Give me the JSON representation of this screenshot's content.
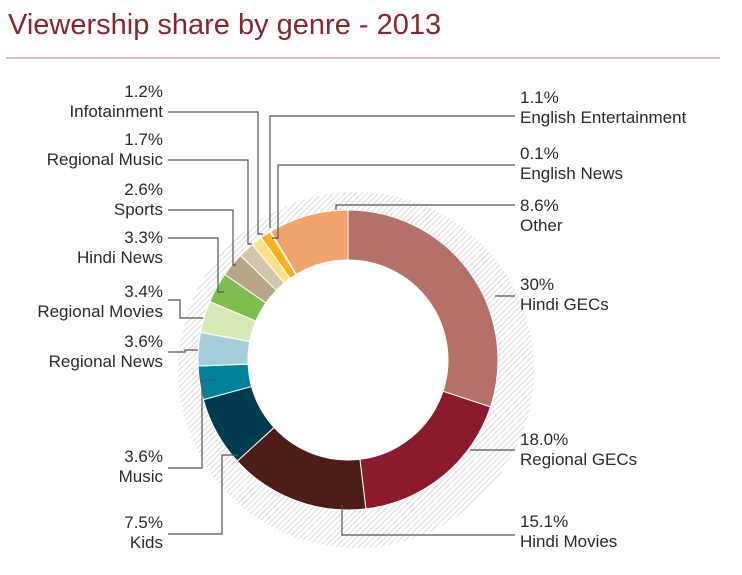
{
  "chart_data": {
    "type": "donut",
    "title": "Viewership share by genre - 2013",
    "unit": "%",
    "slices": [
      {
        "name": "Hindi GECs",
        "value": 30,
        "label": "30%",
        "color": "#b5706a"
      },
      {
        "name": "Regional GECs",
        "value": 18.0,
        "label": "18.0%",
        "color": "#8b1a2b"
      },
      {
        "name": "Hindi Movies",
        "value": 15.1,
        "label": "15.1%",
        "color": "#4d1e17"
      },
      {
        "name": "Kids",
        "value": 7.5,
        "label": "7.5%",
        "color": "#003c4c"
      },
      {
        "name": "Music",
        "value": 3.6,
        "label": "3.6%",
        "color": "#008399"
      },
      {
        "name": "Regional News",
        "value": 3.6,
        "label": "3.6%",
        "color": "#a5cedc"
      },
      {
        "name": "Regional Movies",
        "value": 3.4,
        "label": "3.4%",
        "color": "#d6e8b6"
      },
      {
        "name": "Hindi News",
        "value": 3.3,
        "label": "3.3%",
        "color": "#7dbe4f"
      },
      {
        "name": "Sports",
        "value": 2.6,
        "label": "2.6%",
        "color": "#b8a486"
      },
      {
        "name": "Regional Music",
        "value": 1.7,
        "label": "1.7%",
        "color": "#d2c6ac"
      },
      {
        "name": "Infotainment",
        "value": 1.2,
        "label": "1.2%",
        "color": "#ffe08a"
      },
      {
        "name": "English Entertainment",
        "value": 1.1,
        "label": "1.1%",
        "color": "#f5b21a"
      },
      {
        "name": "English News",
        "value": 0.1,
        "label": "0.1%",
        "color": "#e24a14"
      },
      {
        "name": "Other",
        "value": 8.6,
        "label": "8.6%",
        "color": "#f1a36c"
      }
    ]
  }
}
